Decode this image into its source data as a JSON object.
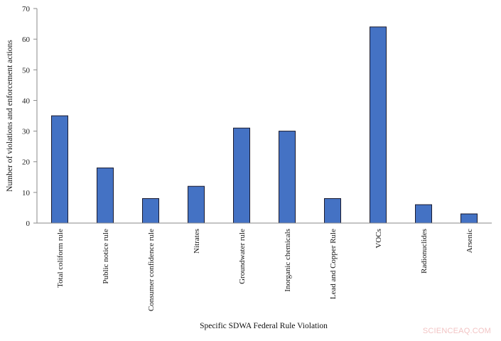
{
  "chart_data": {
    "type": "bar",
    "title": "",
    "xlabel": "Specific SDWA Federal Rule Violation",
    "ylabel": "Number  of violations and enforcement  actions",
    "categories": [
      "Total coliform rule",
      "Public notice rule",
      "Consumer confidence rule",
      "Nitrates",
      "Groundwater rule",
      "Inorganic chemicals",
      "Lead and Copper Rule",
      "VOCs",
      "Radionuclides",
      "Arsenic"
    ],
    "values": [
      35,
      18,
      8,
      12,
      31,
      30,
      8,
      64,
      6,
      3
    ],
    "ylim": [
      0,
      70
    ],
    "yticks": [
      0,
      10,
      20,
      30,
      40,
      50,
      60,
      70
    ],
    "grid": false,
    "legend": null,
    "bar_color": "#4472c4",
    "bar_edge_color": "#1a1a2e"
  },
  "watermark": "SCIENCEAQ.COM"
}
